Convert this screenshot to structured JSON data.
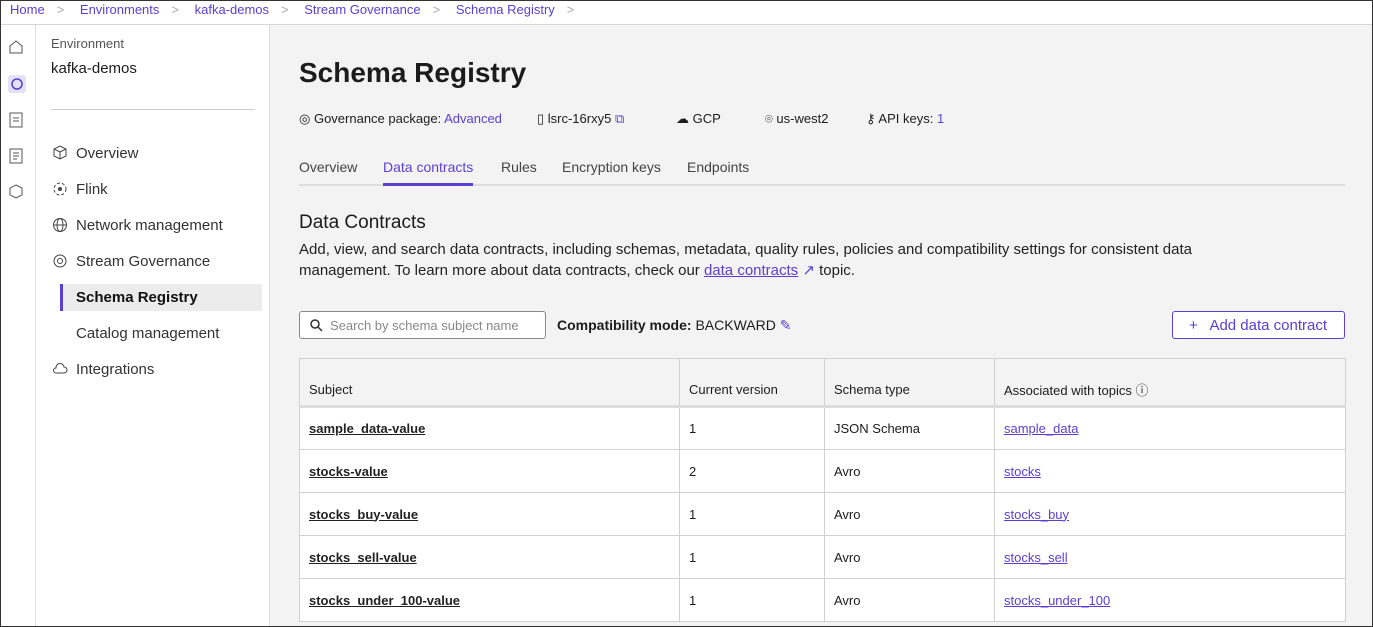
{
  "breadcrumbs": [
    "Home",
    "Environments",
    "kafka-demos",
    "Stream Governance",
    "Schema Registry"
  ],
  "sidebar": {
    "environment_label": "Environment",
    "environment_name": "kafka-demos",
    "nav": [
      "Overview",
      "Flink",
      "Network management",
      "Stream Governance",
      "Schema Registry",
      "Catalog management",
      "Integrations"
    ]
  },
  "header": {
    "title": "Schema Registry",
    "meta": {
      "governance_label": "Governance package:",
      "governance_value": "Advanced",
      "cluster_id": "lsrc-16rxy5",
      "cloud": "GCP",
      "region": "us-west2",
      "api_keys_label": "API keys:",
      "api_keys_value": 1
    }
  },
  "tabs": [
    "Overview",
    "Data contracts",
    "Rules",
    "Encryption keys",
    "Endpoints"
  ],
  "section": {
    "title": "Data Contracts",
    "description_before": "Add, view, and search data contracts, including schemas, metadata, quality rules, policies and compatibility settings for consistent data management. To learn more about data contracts, check our ",
    "link": "data contracts",
    "description_after": " topic."
  },
  "toolbar": {
    "search_placeholder": "Search by schema subject name",
    "compat_label": "Compatibility mode:",
    "compat_value": "BACKWARD",
    "add_button": "Add data contract"
  },
  "table": {
    "columns": [
      "Subject",
      "Current version",
      "Schema type",
      "Associated with topics"
    ],
    "rows": [
      [
        "sample_data-value",
        1,
        "JSON Schema",
        "sample_data"
      ],
      [
        "stocks-value",
        2,
        "Avro",
        "stocks"
      ],
      [
        "stocks_buy-value",
        1,
        "Avro",
        "stocks_buy"
      ],
      [
        "stocks_sell-value",
        1,
        "Avro",
        "stocks_sell"
      ],
      [
        "stocks_under_100-value",
        1,
        "Avro",
        "stocks_under_100"
      ]
    ]
  }
}
